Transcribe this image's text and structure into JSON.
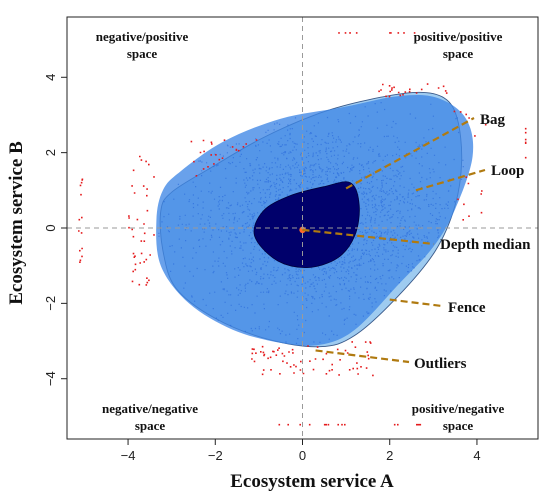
{
  "chart_data": {
    "type": "scatter",
    "subtype": "bagplot",
    "xlabel": "Ecosystem service A",
    "ylabel": "Ecosystem service B",
    "xlim": [
      -5.4,
      5.4
    ],
    "ylim": [
      -5.6,
      5.6
    ],
    "x_ticks": [
      -4,
      -2,
      0,
      2,
      4
    ],
    "y_ticks": [
      -4,
      -2,
      0,
      2,
      4
    ],
    "x_tick_labels": [
      "−4",
      "−2",
      "0",
      "2",
      "4"
    ],
    "y_tick_labels": [
      "−4",
      "−2",
      "0",
      "2",
      "4"
    ],
    "reference_lines": {
      "x": 0,
      "y": 0,
      "style": "dashed"
    },
    "quadrant_labels": {
      "top_left": [
        "negative/positive",
        "space"
      ],
      "top_right": [
        "positive/positive",
        "space"
      ],
      "bottom_left": [
        "negative/negative",
        "space"
      ],
      "bottom_right": [
        "positive/negative",
        "space"
      ]
    },
    "annotations": [
      {
        "text": "Bag",
        "target": [
          1.0,
          1.05
        ]
      },
      {
        "text": "Loop",
        "target": [
          2.6,
          1.0
        ]
      },
      {
        "text": "Depth median",
        "target": [
          0.0,
          -0.05
        ]
      },
      {
        "text": "Fence",
        "target": [
          2.0,
          -1.9
        ]
      },
      {
        "text": "Outliers",
        "target": [
          0.3,
          -3.25
        ]
      }
    ],
    "depth_median": [
      0.0,
      -0.05
    ],
    "bag_polygon": [
      [
        -1.1,
        -0.2
      ],
      [
        -0.9,
        0.45
      ],
      [
        -0.3,
        0.85
      ],
      [
        0.5,
        1.1
      ],
      [
        1.1,
        1.2
      ],
      [
        1.3,
        0.6
      ],
      [
        1.2,
        -0.2
      ],
      [
        0.8,
        -0.8
      ],
      [
        0.1,
        -1.05
      ],
      [
        -0.6,
        -0.85
      ]
    ],
    "loop_polygon": [
      [
        -3.2,
        1.0
      ],
      [
        -2.8,
        1.5
      ],
      [
        -1.8,
        2.3
      ],
      [
        -0.5,
        2.9
      ],
      [
        0.9,
        3.2
      ],
      [
        2.2,
        3.5
      ],
      [
        3.1,
        3.45
      ],
      [
        3.75,
        2.9
      ],
      [
        3.9,
        1.9
      ],
      [
        3.5,
        0.5
      ],
      [
        3.0,
        -0.5
      ],
      [
        2.2,
        -1.5
      ],
      [
        1.2,
        -2.7
      ],
      [
        0.4,
        -3.1
      ],
      [
        -0.5,
        -3.05
      ],
      [
        -1.6,
        -2.7
      ],
      [
        -2.6,
        -2.0
      ],
      [
        -3.25,
        -1.0
      ],
      [
        -3.35,
        0.2
      ]
    ],
    "fence_polygon": [
      [
        -3.25,
        0.45
      ],
      [
        -3.0,
        0.95
      ],
      [
        -2.1,
        1.6
      ],
      [
        -0.9,
        2.4
      ],
      [
        0.4,
        3.05
      ],
      [
        1.5,
        3.4
      ],
      [
        2.6,
        3.6
      ],
      [
        3.25,
        3.45
      ],
      [
        3.55,
        2.9
      ],
      [
        3.65,
        1.8
      ],
      [
        3.5,
        0.6
      ],
      [
        3.05,
        -0.6
      ],
      [
        2.2,
        -1.8
      ],
      [
        1.2,
        -2.85
      ],
      [
        0.4,
        -3.15
      ],
      [
        -0.8,
        -2.95
      ],
      [
        -2.0,
        -2.4
      ],
      [
        -2.9,
        -1.6
      ],
      [
        -3.2,
        -0.6
      ]
    ],
    "series": [
      {
        "name": "Outliers",
        "color": "#e41a1c"
      },
      {
        "name": "Bag",
        "color": "#00006b"
      },
      {
        "name": "Loop",
        "color": "#1e6ad8"
      },
      {
        "name": "Fence",
        "color": "#9ecbf0"
      }
    ],
    "colors": {
      "fence": "#9ecbf0",
      "loop_points": "#2063d8",
      "bag": "#00006b",
      "outliers": "#e41a1c",
      "median": "#ff6a2a",
      "leader": "#b07a10"
    }
  }
}
